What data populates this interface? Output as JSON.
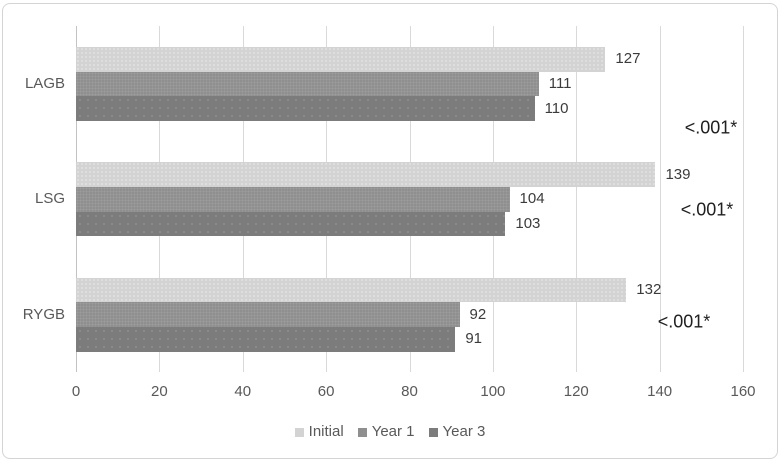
{
  "chart_data": {
    "type": "bar",
    "orientation": "horizontal",
    "title": "",
    "xlabel": "",
    "ylabel": "",
    "categories": [
      "LAGB",
      "LSG",
      "RYGB"
    ],
    "series": [
      {
        "name": "Initial",
        "color": "#d3d3d3",
        "values": [
          127,
          139,
          132
        ]
      },
      {
        "name": "Year 1",
        "color": "#8f8f8f",
        "values": [
          111,
          104,
          92
        ]
      },
      {
        "name": "Year 3",
        "color": "#7c7c7c",
        "values": [
          110,
          103,
          91
        ]
      }
    ],
    "value_labels_shown": true,
    "annotations": [
      {
        "category": "LAGB",
        "text": "<.001*"
      },
      {
        "category": "LSG",
        "text": "<.001*"
      },
      {
        "category": "RYGB",
        "text": "<.001*"
      }
    ],
    "x_ticks": [
      0,
      20,
      40,
      60,
      80,
      100,
      120,
      140,
      160
    ],
    "xlim": [
      0,
      160
    ],
    "grid": true,
    "legend_position": "bottom"
  },
  "colors": {
    "gridline": "#d9d9d9",
    "axis_text": "#595959",
    "value_text": "#3b3b3b",
    "annotation_text": "#212121",
    "frame_border": "#d4d4d4"
  }
}
